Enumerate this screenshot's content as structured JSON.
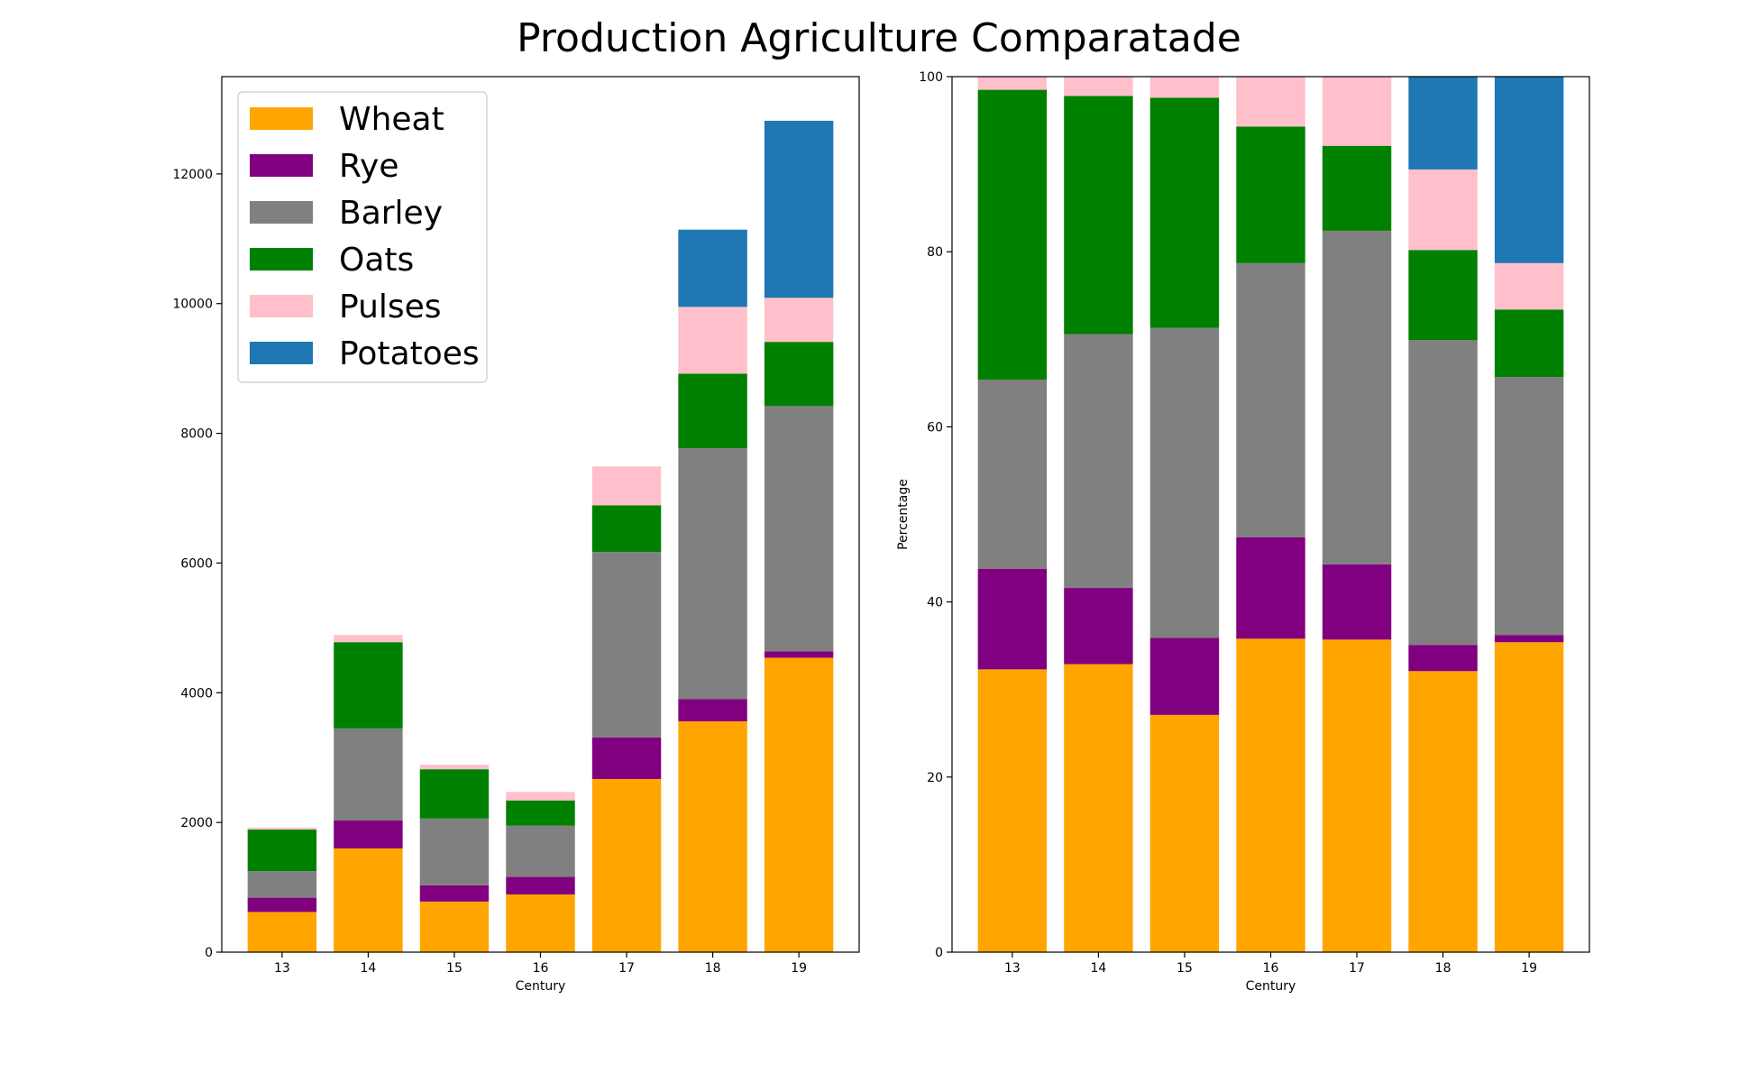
{
  "figure": {
    "suptitle": "Production Agriculture Comparatade"
  },
  "chart_data": [
    {
      "type": "bar",
      "stacked": true,
      "categories": [
        "13",
        "14",
        "15",
        "16",
        "17",
        "18",
        "19"
      ],
      "xlabel": "Century",
      "ylabel": "",
      "ylim": [
        0,
        13500
      ],
      "yticks": [
        0,
        2000,
        4000,
        6000,
        8000,
        10000,
        12000
      ],
      "legend": {
        "position": "upper-left"
      },
      "series": [
        {
          "name": "Wheat",
          "color": "#ffa500",
          "values": [
            620,
            1600,
            780,
            890,
            2670,
            3560,
            4540
          ]
        },
        {
          "name": "Rye",
          "color": "#800080",
          "values": [
            220,
            430,
            250,
            270,
            640,
            340,
            100
          ]
        },
        {
          "name": "Barley",
          "color": "#808080",
          "values": [
            410,
            1420,
            1030,
            790,
            2860,
            3870,
            3780
          ]
        },
        {
          "name": "Oats",
          "color": "#008000",
          "values": [
            640,
            1330,
            760,
            390,
            720,
            1150,
            990
          ]
        },
        {
          "name": "Pulses",
          "color": "#ffc0cb",
          "values": [
            30,
            110,
            70,
            130,
            600,
            1030,
            680
          ]
        },
        {
          "name": "Potatoes",
          "color": "#1f77b4",
          "values": [
            0,
            0,
            0,
            0,
            0,
            1190,
            2730
          ]
        }
      ]
    },
    {
      "type": "bar",
      "stacked": true,
      "categories": [
        "13",
        "14",
        "15",
        "16",
        "17",
        "18",
        "19"
      ],
      "xlabel": "Century",
      "ylabel": "Percentage",
      "ylim": [
        0,
        100
      ],
      "yticks": [
        0,
        20,
        40,
        60,
        80,
        100
      ],
      "series": [
        {
          "name": "Wheat",
          "color": "#ffa500",
          "values": [
            32.3,
            32.9,
            27.1,
            35.8,
            35.7,
            32.1,
            35.4
          ]
        },
        {
          "name": "Rye",
          "color": "#800080",
          "values": [
            11.5,
            8.7,
            8.8,
            11.6,
            8.6,
            3.0,
            0.8
          ]
        },
        {
          "name": "Barley",
          "color": "#808080",
          "values": [
            21.6,
            29.0,
            35.4,
            31.3,
            38.1,
            34.8,
            29.5
          ]
        },
        {
          "name": "Oats",
          "color": "#008000",
          "values": [
            33.1,
            27.2,
            26.3,
            15.6,
            9.7,
            10.3,
            7.7
          ]
        },
        {
          "name": "Pulses",
          "color": "#ffc0cb",
          "values": [
            1.5,
            2.2,
            2.4,
            5.7,
            7.9,
            9.2,
            5.3
          ]
        },
        {
          "name": "Potatoes",
          "color": "#1f77b4",
          "values": [
            0,
            0,
            0,
            0,
            0,
            10.6,
            21.3
          ]
        }
      ]
    }
  ]
}
